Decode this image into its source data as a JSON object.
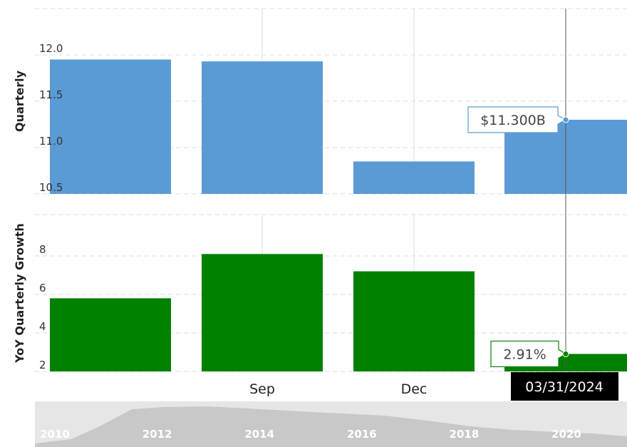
{
  "chart_data": [
    {
      "type": "bar",
      "ylabel": "Quarterly",
      "ylim": [
        10.5,
        12.3
      ],
      "yticks": [
        "10.5",
        "11.0",
        "11.5",
        "12.0"
      ],
      "values": [
        11.95,
        11.93,
        10.85,
        11.3
      ],
      "color": "#5b9bd5",
      "tooltip": "$11.300B",
      "tooltip_value": 11.3
    },
    {
      "type": "bar",
      "ylabel": "YoY Quarterly Growth",
      "ylim": [
        2,
        10
      ],
      "yticks": [
        "2",
        "4",
        "6",
        "8"
      ],
      "values": [
        5.8,
        8.1,
        7.2,
        2.91
      ],
      "color": "#008000",
      "tooltip": "2.91%",
      "tooltip_value": 2.91
    }
  ],
  "x_axis": {
    "labels": [
      "Sep",
      "Dec"
    ]
  },
  "crosshair_date": "03/31/2024",
  "navigator": {
    "labels": [
      "2010",
      "2012",
      "2014",
      "2016",
      "2018",
      "2020"
    ]
  }
}
